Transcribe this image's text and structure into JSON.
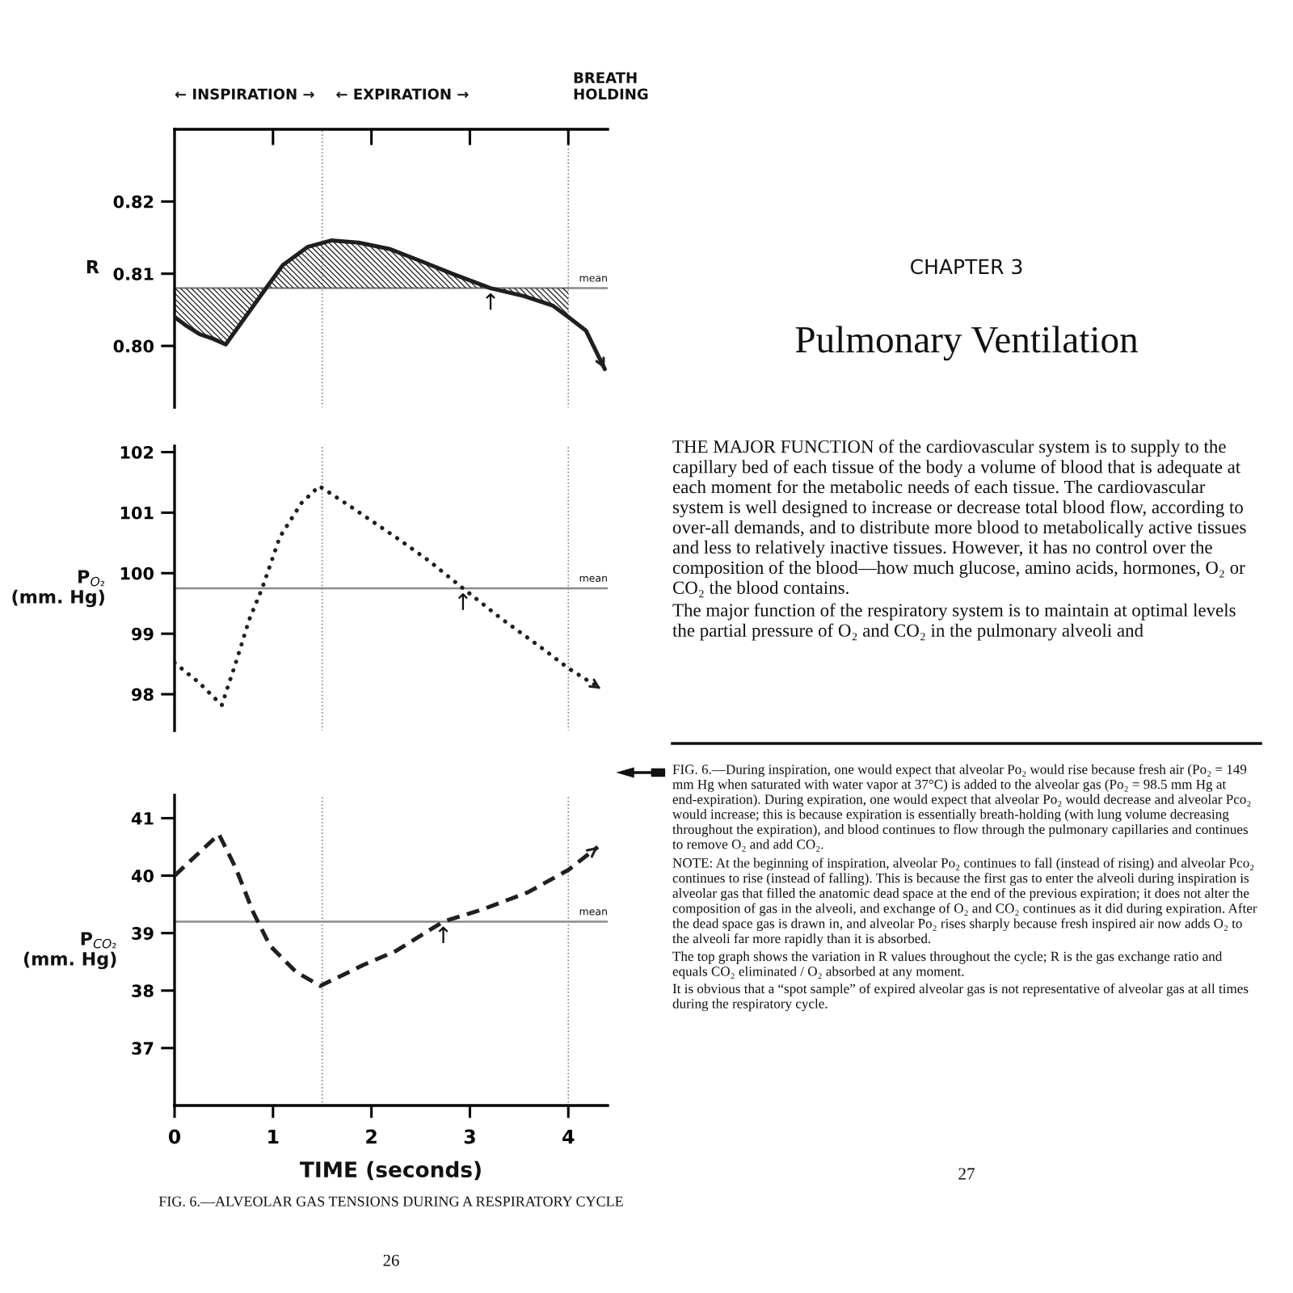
{
  "chart_data": [
    {
      "type": "line",
      "ylabel": "R",
      "xlim": [
        0,
        4.4
      ],
      "xticks": [
        1,
        2,
        3,
        4
      ],
      "ylim": [
        0.7915,
        0.83
      ],
      "yticks": [
        {
          "value": 0.8,
          "label": "0.80"
        },
        0.81,
        0.82
      ],
      "tick_labels": "y",
      "line_style": "solid",
      "series": [
        {
          "color": "#1f1f1f",
          "x": [
            0,
            0.13,
            0.26,
            0.39,
            0.52,
            0.93,
            1.1,
            1.35,
            1.59,
            1.87,
            2.19,
            2.51,
            2.84,
            3.21,
            3.55,
            3.84,
            4.0,
            4.18,
            4.37
          ],
          "values": [
            0.804,
            0.8027,
            0.8016,
            0.801,
            0.8002,
            0.808,
            0.8112,
            0.8137,
            0.8146,
            0.8143,
            0.8134,
            0.8117,
            0.8099,
            0.808,
            0.8069,
            0.8056,
            0.804,
            0.8021,
            0.7968
          ],
          "lower": [
            0.804,
            0.8027,
            0.8016,
            0.801,
            0.8002,
            0.808,
            0.808,
            0.808,
            0.808,
            0.808,
            0.808,
            0.808,
            0.808,
            0.808,
            0.8069,
            0.8056,
            0.804,
            null,
            null
          ],
          "upper": [
            0.808,
            0.808,
            0.808,
            0.808,
            0.808,
            0.808,
            0.8112,
            0.8137,
            0.8146,
            0.8143,
            0.8134,
            0.8117,
            0.8099,
            0.808,
            0.808,
            0.808,
            0.808,
            null,
            null
          ]
        }
      ],
      "ref_lines": [
        {
          "axis": "y",
          "value": 0.808,
          "label": "mean",
          "color": "#8a8a8a"
        },
        {
          "axis": "x",
          "value": 1.5,
          "label": null,
          "color": "#8f8f8f",
          "line_style": "dotted"
        },
        {
          "axis": "x",
          "value": 4,
          "label": null,
          "color": "#8f8f8f",
          "line_style": "dotted"
        }
      ],
      "annotations": [
        "← INSPIRATION →",
        "← EXPIRATION →",
        "BREATH\nHOLDING",
        {
          "text": "↑",
          "x": 3.21,
          "y": 0.808
        }
      ]
    },
    {
      "type": "line",
      "ylabel": "P$_{O₂}$\n(mm. Hg)",
      "xlim": [
        0,
        4.4
      ],
      "ylim": [
        97.4,
        102.1
      ],
      "yticks": [
        98,
        99,
        100,
        101,
        102
      ],
      "tick_labels": "y",
      "line_style": "dotted",
      "series": [
        {
          "color": "#1f1f1f",
          "x": [
            0,
            0.25,
            0.48,
            0.63,
            0.76,
            0.89,
            1.07,
            1.29,
            1.47,
            1.78,
            2.26,
            2.58,
            2.93,
            3.31,
            3.75,
            4.0,
            4.33
          ],
          "values": [
            98.52,
            98.19,
            97.82,
            98.56,
            99.24,
            99.75,
            100.6,
            101.16,
            101.44,
            101.11,
            100.58,
            100.21,
            99.75,
            99.26,
            98.74,
            98.43,
            98.09
          ]
        }
      ],
      "ref_lines": [
        {
          "axis": "y",
          "value": 99.75,
          "label": "mean",
          "color": "#8a8a8a"
        },
        {
          "axis": "x",
          "value": 1.5,
          "label": null,
          "color": "#8f8f8f",
          "line_style": "dotted"
        },
        {
          "axis": "x",
          "value": 4,
          "label": null,
          "color": "#8f8f8f",
          "line_style": "dotted"
        }
      ],
      "annotations": [
        {
          "text": "↑",
          "x": 2.93,
          "y": 99.75
        }
      ]
    },
    {
      "type": "line",
      "ylabel": "P$_{CO₂}$\n(mm. Hg)",
      "xlabel": "TIME (seconds)",
      "xlim": [
        0,
        4.4
      ],
      "xticks": [
        0,
        1,
        2,
        3,
        4
      ],
      "ylim": [
        36.0,
        41.4
      ],
      "yticks": [
        37,
        38,
        39,
        40,
        41
      ],
      "line_style": "dashed",
      "series": [
        {
          "color": "#1f1f1f",
          "x": [
            0,
            0.45,
            0.62,
            0.8,
            0.97,
            1.23,
            1.48,
            1.91,
            2.25,
            2.73,
            3.14,
            3.59,
            4.0,
            4.3
          ],
          "values": [
            40.0,
            40.72,
            40.14,
            39.36,
            38.78,
            38.33,
            38.08,
            38.44,
            38.69,
            39.2,
            39.42,
            39.71,
            40.1,
            40.5
          ]
        }
      ],
      "ref_lines": [
        {
          "axis": "y",
          "value": 39.2,
          "label": "mean",
          "color": "#8a8a8a"
        },
        {
          "axis": "x",
          "value": 1.5,
          "label": null,
          "color": "#8f8f8f",
          "line_style": "dotted"
        },
        {
          "axis": "x",
          "value": 4,
          "label": null,
          "color": "#8f8f8f",
          "line_style": "dotted"
        }
      ],
      "annotations": [
        {
          "text": "↑",
          "x": 2.73,
          "y": 39.2
        },
        "FIG. 6.—ALVEOLAR GAS TENSIONS DURING A RESPIRATORY CYCLE",
        "26"
      ]
    },
    {
      "type": "other",
      "subtitle": "CHAPTER 3",
      "title": "Pulmonary Ventilation",
      "annotations": [
        "THE MAJOR FUNCTION of the cardiovascular system is to supply to the capillary bed of each tissue of the body a volume of blood that is adequate at each moment for the metabolic needs of each tissue. The cardiovascular system is well designed to increase or decrease total blood flow, according to over-all demands, and to distribute more blood to metabolically active tissues and less to relatively inactive tissues. However, it has no control over the composition of the blood—how much glucose, amino acids, hormones, O₂ or CO₂ the blood contains.",
        "The major function of the respiratory system is to maintain at optimal levels the partial pressure of O₂ and CO₂ in the pulmonary alveoli and"
      ]
    },
    {
      "type": "other",
      "annotations": [
        "FIG. 6.—During inspiration, one would expect that alveolar Po₂ would rise because fresh air (Po₂ = 149 mm Hg when saturated with water vapor at 37°C) is added to the alveolar gas (Po₂ = 98.5 mm Hg at end-expiration). During expiration, one would expect that alveolar Po₂ would decrease and alveolar Pco₂ would increase; this is because expiration is essentially breath-holding (with lung volume decreasing throughout the expiration), and blood continues to flow through the pulmonary capillaries and continues to remove O₂ and add CO₂.",
        "NOTE: At the beginning of inspiration, alveolar Po₂ continues to fall (instead of rising) and alveolar Pco₂ continues to rise (instead of falling). This is because the first gas to enter the alveoli during inspiration is alveolar gas that filled the anatomic dead space at the end of the previous expiration; it does not alter the composition of gas in the alveoli, and exchange of O₂ and CO₂ continues as it did during expiration. After the dead space gas is drawn in, and alveolar Po₂ rises sharply because fresh inspired air now adds O₂ to the alveoli far more rapidly than it is absorbed.",
        "The top graph shows the variation in R values throughout the cycle; R is the gas exchange ratio and equals CO₂ eliminated / O₂ absorbed at any moment.",
        "It is obvious that a “spot sample” of expired alveolar gas is not representative of alveolar gas at all times during the respiratory cycle.",
        "27"
      ]
    }
  ]
}
